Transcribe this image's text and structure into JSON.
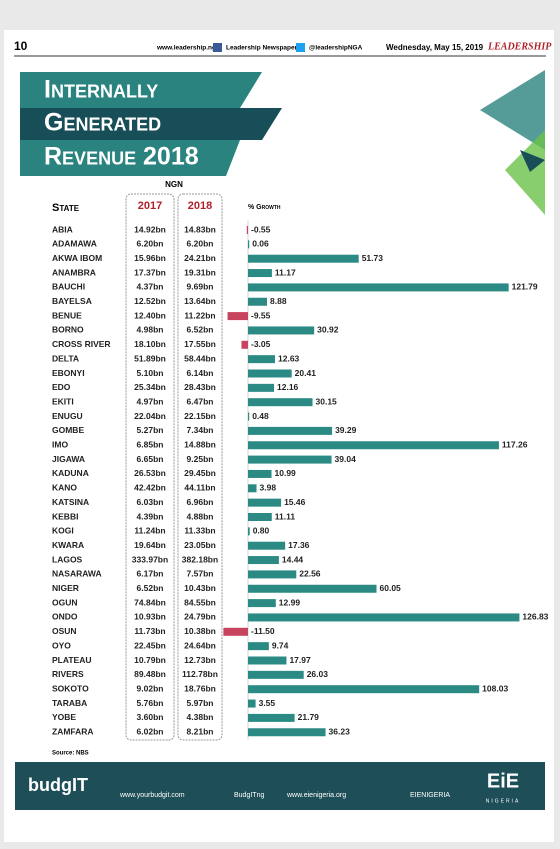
{
  "header": {
    "page_number": "10",
    "website": "www.leadership.ng",
    "facebook": "Leadership Newspapers",
    "twitter": "@leadershipNGA",
    "date": "Wednesday, May 15, 2019",
    "brand": "LEADERSHIP"
  },
  "chart_data": {
    "type": "bar",
    "title_lines": [
      "Internally",
      "Generated",
      "Revenue 2018"
    ],
    "unit": "NGN",
    "column_labels": {
      "state": "State",
      "first": "2017",
      "second": "2018",
      "growth": "% Growth"
    },
    "categories": [
      "ABIA",
      "ADAMAWA",
      "AKWA IBOM",
      "ANAMBRA",
      "BAUCHI",
      "BAYELSA",
      "BENUE",
      "BORNO",
      "CROSS RIVER",
      "DELTA",
      "EBONYI",
      "EDO",
      "EKITI",
      "ENUGU",
      "GOMBE",
      "IMO",
      "JIGAWA",
      "KADUNA",
      "KANO",
      "KATSINA",
      "KEBBI",
      "KOGI",
      "KWARA",
      "LAGOS",
      "NASARAWA",
      "NIGER",
      "OGUN",
      "ONDO",
      "OSUN",
      "OYO",
      "PLATEAU",
      "RIVERS",
      "SOKOTO",
      "TARABA",
      "YOBE",
      "ZAMFARA"
    ],
    "revenue_2017": [
      "14.92bn",
      "6.20bn",
      "15.96bn",
      "17.37bn",
      "4.37bn",
      "12.52bn",
      "12.40bn",
      "4.98bn",
      "18.10bn",
      "51.89bn",
      "5.10bn",
      "25.34bn",
      "4.97bn",
      "22.04bn",
      "5.27bn",
      "6.85bn",
      "6.65bn",
      "26.53bn",
      "42.42bn",
      "6.03bn",
      "4.39bn",
      "11.24bn",
      "19.64bn",
      "333.97bn",
      "6.17bn",
      "6.52bn",
      "74.84bn",
      "10.93bn",
      "11.73bn",
      "22.45bn",
      "10.79bn",
      "89.48bn",
      "9.02bn",
      "5.76bn",
      "3.60bn",
      "6.02bn"
    ],
    "revenue_2018": [
      "14.83bn",
      "6.20bn",
      "24.21bn",
      "19.31bn",
      "9.69bn",
      "13.64bn",
      "11.22bn",
      "6.52bn",
      "17.55bn",
      "58.44bn",
      "6.14bn",
      "28.43bn",
      "6.47bn",
      "22.15bn",
      "7.34bn",
      "14.88bn",
      "9.25bn",
      "29.45bn",
      "44.11bn",
      "6.96bn",
      "4.88bn",
      "11.33bn",
      "23.05bn",
      "382.18bn",
      "7.57bn",
      "10.43bn",
      "84.55bn",
      "24.79bn",
      "10.38bn",
      "24.64bn",
      "12.73bn",
      "112.78bn",
      "18.76bn",
      "5.97bn",
      "4.38bn",
      "8.21bn"
    ],
    "values": [
      -0.55,
      0.06,
      51.73,
      11.17,
      121.79,
      8.88,
      -9.55,
      30.92,
      -3.05,
      12.63,
      20.41,
      12.16,
      30.15,
      0.48,
      39.29,
      117.26,
      39.04,
      10.99,
      3.98,
      15.46,
      11.11,
      0.8,
      17.36,
      14.44,
      22.56,
      60.05,
      12.99,
      126.83,
      -11.5,
      9.74,
      17.97,
      26.03,
      108.03,
      3.55,
      21.79,
      36.23
    ],
    "value_labels": [
      "-0.55",
      "0.06",
      "51.73",
      "11.17",
      "121.79",
      "8.88",
      "-9.55",
      "30.92",
      "-3.05",
      "12.63",
      "20.41",
      "12.16",
      "30.15",
      "0.48",
      "39.29",
      "117.26",
      "39.04",
      "10.99",
      "3.98",
      "15.46",
      "11.11",
      "0.80",
      "17.36",
      "14.44",
      "22.56",
      "60.05",
      "12.99",
      "126.83",
      "-11.50",
      "9.74",
      "17.97",
      "26.03",
      "108.03",
      "3.55",
      "21.79",
      "36.23"
    ],
    "color": "#2b8a84",
    "negative_color": "#c8435e",
    "source": "Source: NBS"
  },
  "footer": {
    "brand_left": "budgIT",
    "website_left": "www.yourbudgit.com",
    "social_left": "BudgITng",
    "website_right": "www.eienigeria.org",
    "social_right": "EIENIGERIA",
    "brand_right": "EiE",
    "brand_right_sub": "NIGERIA"
  }
}
